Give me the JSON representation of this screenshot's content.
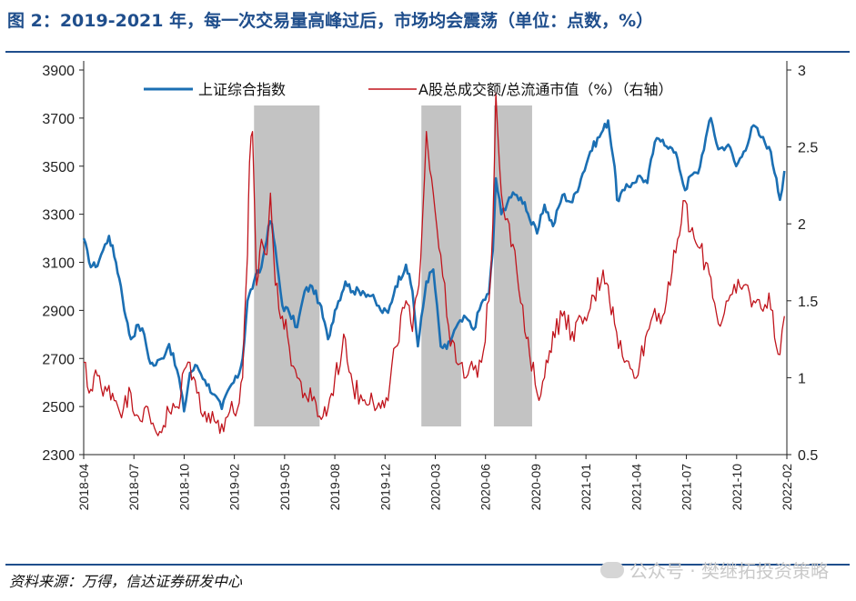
{
  "figure": {
    "title": "图 2：2019-2021 年，每一次交易量高峰过后，市场均会震荡（单位：点数，%）",
    "source": "资料来源：万得，信达证券研发中心",
    "watermark": "公众号 · 樊继拓投资策略"
  },
  "chart_data": {
    "type": "line",
    "title": "",
    "xlabel": "",
    "ylabel": "",
    "x_ticks": [
      "2018-04",
      "2018-07",
      "2018-10",
      "2019-02",
      "2019-05",
      "2019-08",
      "2019-12",
      "2020-03",
      "2020-06",
      "2020-09",
      "2021-01",
      "2021-04",
      "2021-07",
      "2021-10",
      "2022-02"
    ],
    "ylim_left": [
      2300,
      3900
    ],
    "yticks_left": [
      2300,
      2500,
      2700,
      2900,
      3100,
      3300,
      3500,
      3700,
      3900
    ],
    "ylim_right": [
      0.5,
      3
    ],
    "yticks_right": [
      "0.5",
      "1",
      "1.5",
      "2",
      "2.5",
      "3"
    ],
    "legend_position": "top",
    "shaded_periods": [
      {
        "start": "2019-03-10",
        "end": "2019-07-20"
      },
      {
        "start": "2020-02-10",
        "end": "2020-04-30"
      },
      {
        "start": "2020-07-05",
        "end": "2020-09-20"
      }
    ],
    "series": [
      {
        "name": "上证综合指数",
        "axis": "left",
        "color": "#1b6fb3",
        "points": [
          [
            "2018-04-01",
            3200
          ],
          [
            "2018-04-12",
            3100
          ],
          [
            "2018-04-25",
            3080
          ],
          [
            "2018-05-10",
            3150
          ],
          [
            "2018-05-22",
            3210
          ],
          [
            "2018-06-05",
            3100
          ],
          [
            "2018-06-15",
            3000
          ],
          [
            "2018-06-25",
            2870
          ],
          [
            "2018-07-05",
            2780
          ],
          [
            "2018-07-20",
            2840
          ],
          [
            "2018-08-01",
            2800
          ],
          [
            "2018-08-10",
            2700
          ],
          [
            "2018-08-20",
            2670
          ],
          [
            "2018-09-05",
            2700
          ],
          [
            "2018-09-20",
            2760
          ],
          [
            "2018-10-10",
            2620
          ],
          [
            "2018-10-20",
            2480
          ],
          [
            "2018-11-01",
            2640
          ],
          [
            "2018-11-15",
            2670
          ],
          [
            "2018-12-01",
            2610
          ],
          [
            "2018-12-20",
            2550
          ],
          [
            "2019-01-04",
            2490
          ],
          [
            "2019-01-20",
            2580
          ],
          [
            "2019-02-05",
            2620
          ],
          [
            "2019-02-15",
            2700
          ],
          [
            "2019-02-25",
            2940
          ],
          [
            "2019-03-10",
            3020
          ],
          [
            "2019-03-25",
            3080
          ],
          [
            "2019-04-08",
            3250
          ],
          [
            "2019-04-15",
            3260
          ],
          [
            "2019-04-25",
            3100
          ],
          [
            "2019-05-06",
            2920
          ],
          [
            "2019-05-20",
            2890
          ],
          [
            "2019-06-05",
            2830
          ],
          [
            "2019-06-20",
            2980
          ],
          [
            "2019-07-05",
            3000
          ],
          [
            "2019-07-20",
            2930
          ],
          [
            "2019-08-06",
            2780
          ],
          [
            "2019-08-20",
            2900
          ],
          [
            "2019-09-10",
            3020
          ],
          [
            "2019-09-25",
            2980
          ],
          [
            "2019-10-15",
            2980
          ],
          [
            "2019-11-01",
            2960
          ],
          [
            "2019-11-20",
            2900
          ],
          [
            "2019-12-05",
            2890
          ],
          [
            "2019-12-20",
            3000
          ],
          [
            "2020-01-10",
            3090
          ],
          [
            "2020-01-23",
            2980
          ],
          [
            "2020-02-03",
            2750
          ],
          [
            "2020-02-20",
            3020
          ],
          [
            "2020-03-05",
            3070
          ],
          [
            "2020-03-20",
            2750
          ],
          [
            "2020-04-01",
            2740
          ],
          [
            "2020-04-20",
            2830
          ],
          [
            "2020-05-10",
            2870
          ],
          [
            "2020-05-25",
            2820
          ],
          [
            "2020-06-10",
            2930
          ],
          [
            "2020-06-25",
            2970
          ],
          [
            "2020-07-03",
            3150
          ],
          [
            "2020-07-09",
            3450
          ],
          [
            "2020-07-20",
            3300
          ],
          [
            "2020-08-05",
            3370
          ],
          [
            "2020-08-20",
            3380
          ],
          [
            "2020-09-05",
            3350
          ],
          [
            "2020-09-15",
            3280
          ],
          [
            "2020-09-30",
            3220
          ],
          [
            "2020-10-15",
            3340
          ],
          [
            "2020-11-01",
            3250
          ],
          [
            "2020-11-20",
            3380
          ],
          [
            "2020-12-10",
            3350
          ],
          [
            "2020-12-31",
            3470
          ],
          [
            "2021-01-15",
            3560
          ],
          [
            "2021-02-10",
            3650
          ],
          [
            "2021-02-20",
            3690
          ],
          [
            "2021-03-05",
            3500
          ],
          [
            "2021-03-10",
            3360
          ],
          [
            "2021-03-25",
            3400
          ],
          [
            "2021-04-10",
            3430
          ],
          [
            "2021-04-25",
            3460
          ],
          [
            "2021-05-10",
            3430
          ],
          [
            "2021-05-25",
            3600
          ],
          [
            "2021-06-10",
            3610
          ],
          [
            "2021-06-25",
            3580
          ],
          [
            "2021-07-10",
            3530
          ],
          [
            "2021-07-25",
            3400
          ],
          [
            "2021-08-05",
            3460
          ],
          [
            "2021-08-20",
            3470
          ],
          [
            "2021-09-05",
            3620
          ],
          [
            "2021-09-15",
            3700
          ],
          [
            "2021-09-30",
            3570
          ],
          [
            "2021-10-20",
            3590
          ],
          [
            "2021-11-05",
            3500
          ],
          [
            "2021-11-20",
            3560
          ],
          [
            "2021-12-10",
            3670
          ],
          [
            "2021-12-25",
            3620
          ],
          [
            "2022-01-10",
            3580
          ],
          [
            "2022-01-25",
            3450
          ],
          [
            "2022-02-01",
            3360
          ],
          [
            "2022-02-10",
            3480
          ]
        ]
      },
      {
        "name": "A股总成交额/总流通市值（%）（右轴）",
        "axis": "right",
        "color": "#c0141c",
        "points": [
          [
            "2018-04-01",
            1.1
          ],
          [
            "2018-04-12",
            0.9
          ],
          [
            "2018-04-25",
            1.05
          ],
          [
            "2018-05-10",
            0.88
          ],
          [
            "2018-05-22",
            0.95
          ],
          [
            "2018-06-05",
            0.85
          ],
          [
            "2018-06-20",
            0.8
          ],
          [
            "2018-07-05",
            0.9
          ],
          [
            "2018-07-20",
            0.75
          ],
          [
            "2018-08-01",
            0.8
          ],
          [
            "2018-08-15",
            0.7
          ],
          [
            "2018-09-01",
            0.65
          ],
          [
            "2018-09-20",
            0.78
          ],
          [
            "2018-10-10",
            0.8
          ],
          [
            "2018-10-20",
            1.05
          ],
          [
            "2018-11-01",
            1.1
          ],
          [
            "2018-11-15",
            0.9
          ],
          [
            "2018-12-01",
            0.78
          ],
          [
            "2018-12-20",
            0.72
          ],
          [
            "2019-01-04",
            0.7
          ],
          [
            "2019-01-20",
            0.78
          ],
          [
            "2019-02-05",
            0.8
          ],
          [
            "2019-02-15",
            1.0
          ],
          [
            "2019-02-25",
            1.8
          ],
          [
            "2019-03-01",
            2.4
          ],
          [
            "2019-03-07",
            2.6
          ],
          [
            "2019-03-15",
            1.6
          ],
          [
            "2019-03-25",
            1.9
          ],
          [
            "2019-04-05",
            1.8
          ],
          [
            "2019-04-12",
            2.2
          ],
          [
            "2019-04-22",
            1.6
          ],
          [
            "2019-05-06",
            1.4
          ],
          [
            "2019-05-20",
            1.2
          ],
          [
            "2019-06-05",
            1.0
          ],
          [
            "2019-06-20",
            0.9
          ],
          [
            "2019-07-05",
            0.85
          ],
          [
            "2019-07-20",
            0.75
          ],
          [
            "2019-08-06",
            0.8
          ],
          [
            "2019-08-20",
            1.0
          ],
          [
            "2019-09-10",
            1.25
          ],
          [
            "2019-09-25",
            0.95
          ],
          [
            "2019-10-15",
            0.85
          ],
          [
            "2019-11-01",
            0.9
          ],
          [
            "2019-11-20",
            0.8
          ],
          [
            "2019-12-05",
            0.85
          ],
          [
            "2019-12-20",
            1.2
          ],
          [
            "2020-01-10",
            1.5
          ],
          [
            "2020-01-23",
            1.3
          ],
          [
            "2020-02-05",
            1.6
          ],
          [
            "2020-02-20",
            2.6
          ],
          [
            "2020-03-05",
            2.2
          ],
          [
            "2020-03-20",
            1.8
          ],
          [
            "2020-04-01",
            1.4
          ],
          [
            "2020-04-20",
            1.1
          ],
          [
            "2020-05-10",
            1.0
          ],
          [
            "2020-05-25",
            1.05
          ],
          [
            "2020-06-10",
            1.1
          ],
          [
            "2020-06-25",
            1.5
          ],
          [
            "2020-07-03",
            2.0
          ],
          [
            "2020-07-09",
            2.85
          ],
          [
            "2020-07-20",
            2.2
          ],
          [
            "2020-08-05",
            2.0
          ],
          [
            "2020-08-20",
            1.7
          ],
          [
            "2020-09-05",
            1.3
          ],
          [
            "2020-09-15",
            1.15
          ],
          [
            "2020-09-30",
            0.9
          ],
          [
            "2020-10-15",
            1.0
          ],
          [
            "2020-11-01",
            1.3
          ],
          [
            "2020-11-20",
            1.4
          ],
          [
            "2020-12-10",
            1.3
          ],
          [
            "2020-12-31",
            1.35
          ],
          [
            "2021-01-15",
            1.45
          ],
          [
            "2021-02-10",
            1.7
          ],
          [
            "2021-02-20",
            1.6
          ],
          [
            "2021-03-05",
            1.35
          ],
          [
            "2021-03-25",
            1.1
          ],
          [
            "2021-04-10",
            1.05
          ],
          [
            "2021-04-25",
            1.1
          ],
          [
            "2021-05-10",
            1.3
          ],
          [
            "2021-05-25",
            1.45
          ],
          [
            "2021-06-10",
            1.4
          ],
          [
            "2021-06-25",
            1.6
          ],
          [
            "2021-07-10",
            1.9
          ],
          [
            "2021-07-25",
            2.15
          ],
          [
            "2021-08-05",
            1.95
          ],
          [
            "2021-08-20",
            1.85
          ],
          [
            "2021-09-05",
            1.75
          ],
          [
            "2021-09-15",
            1.65
          ],
          [
            "2021-09-30",
            1.35
          ],
          [
            "2021-10-20",
            1.5
          ],
          [
            "2021-11-05",
            1.55
          ],
          [
            "2021-11-20",
            1.6
          ],
          [
            "2021-12-10",
            1.5
          ],
          [
            "2021-12-25",
            1.45
          ],
          [
            "2022-01-10",
            1.55
          ],
          [
            "2022-01-25",
            1.2
          ],
          [
            "2022-02-01",
            1.15
          ],
          [
            "2022-02-10",
            1.4
          ]
        ]
      }
    ]
  }
}
